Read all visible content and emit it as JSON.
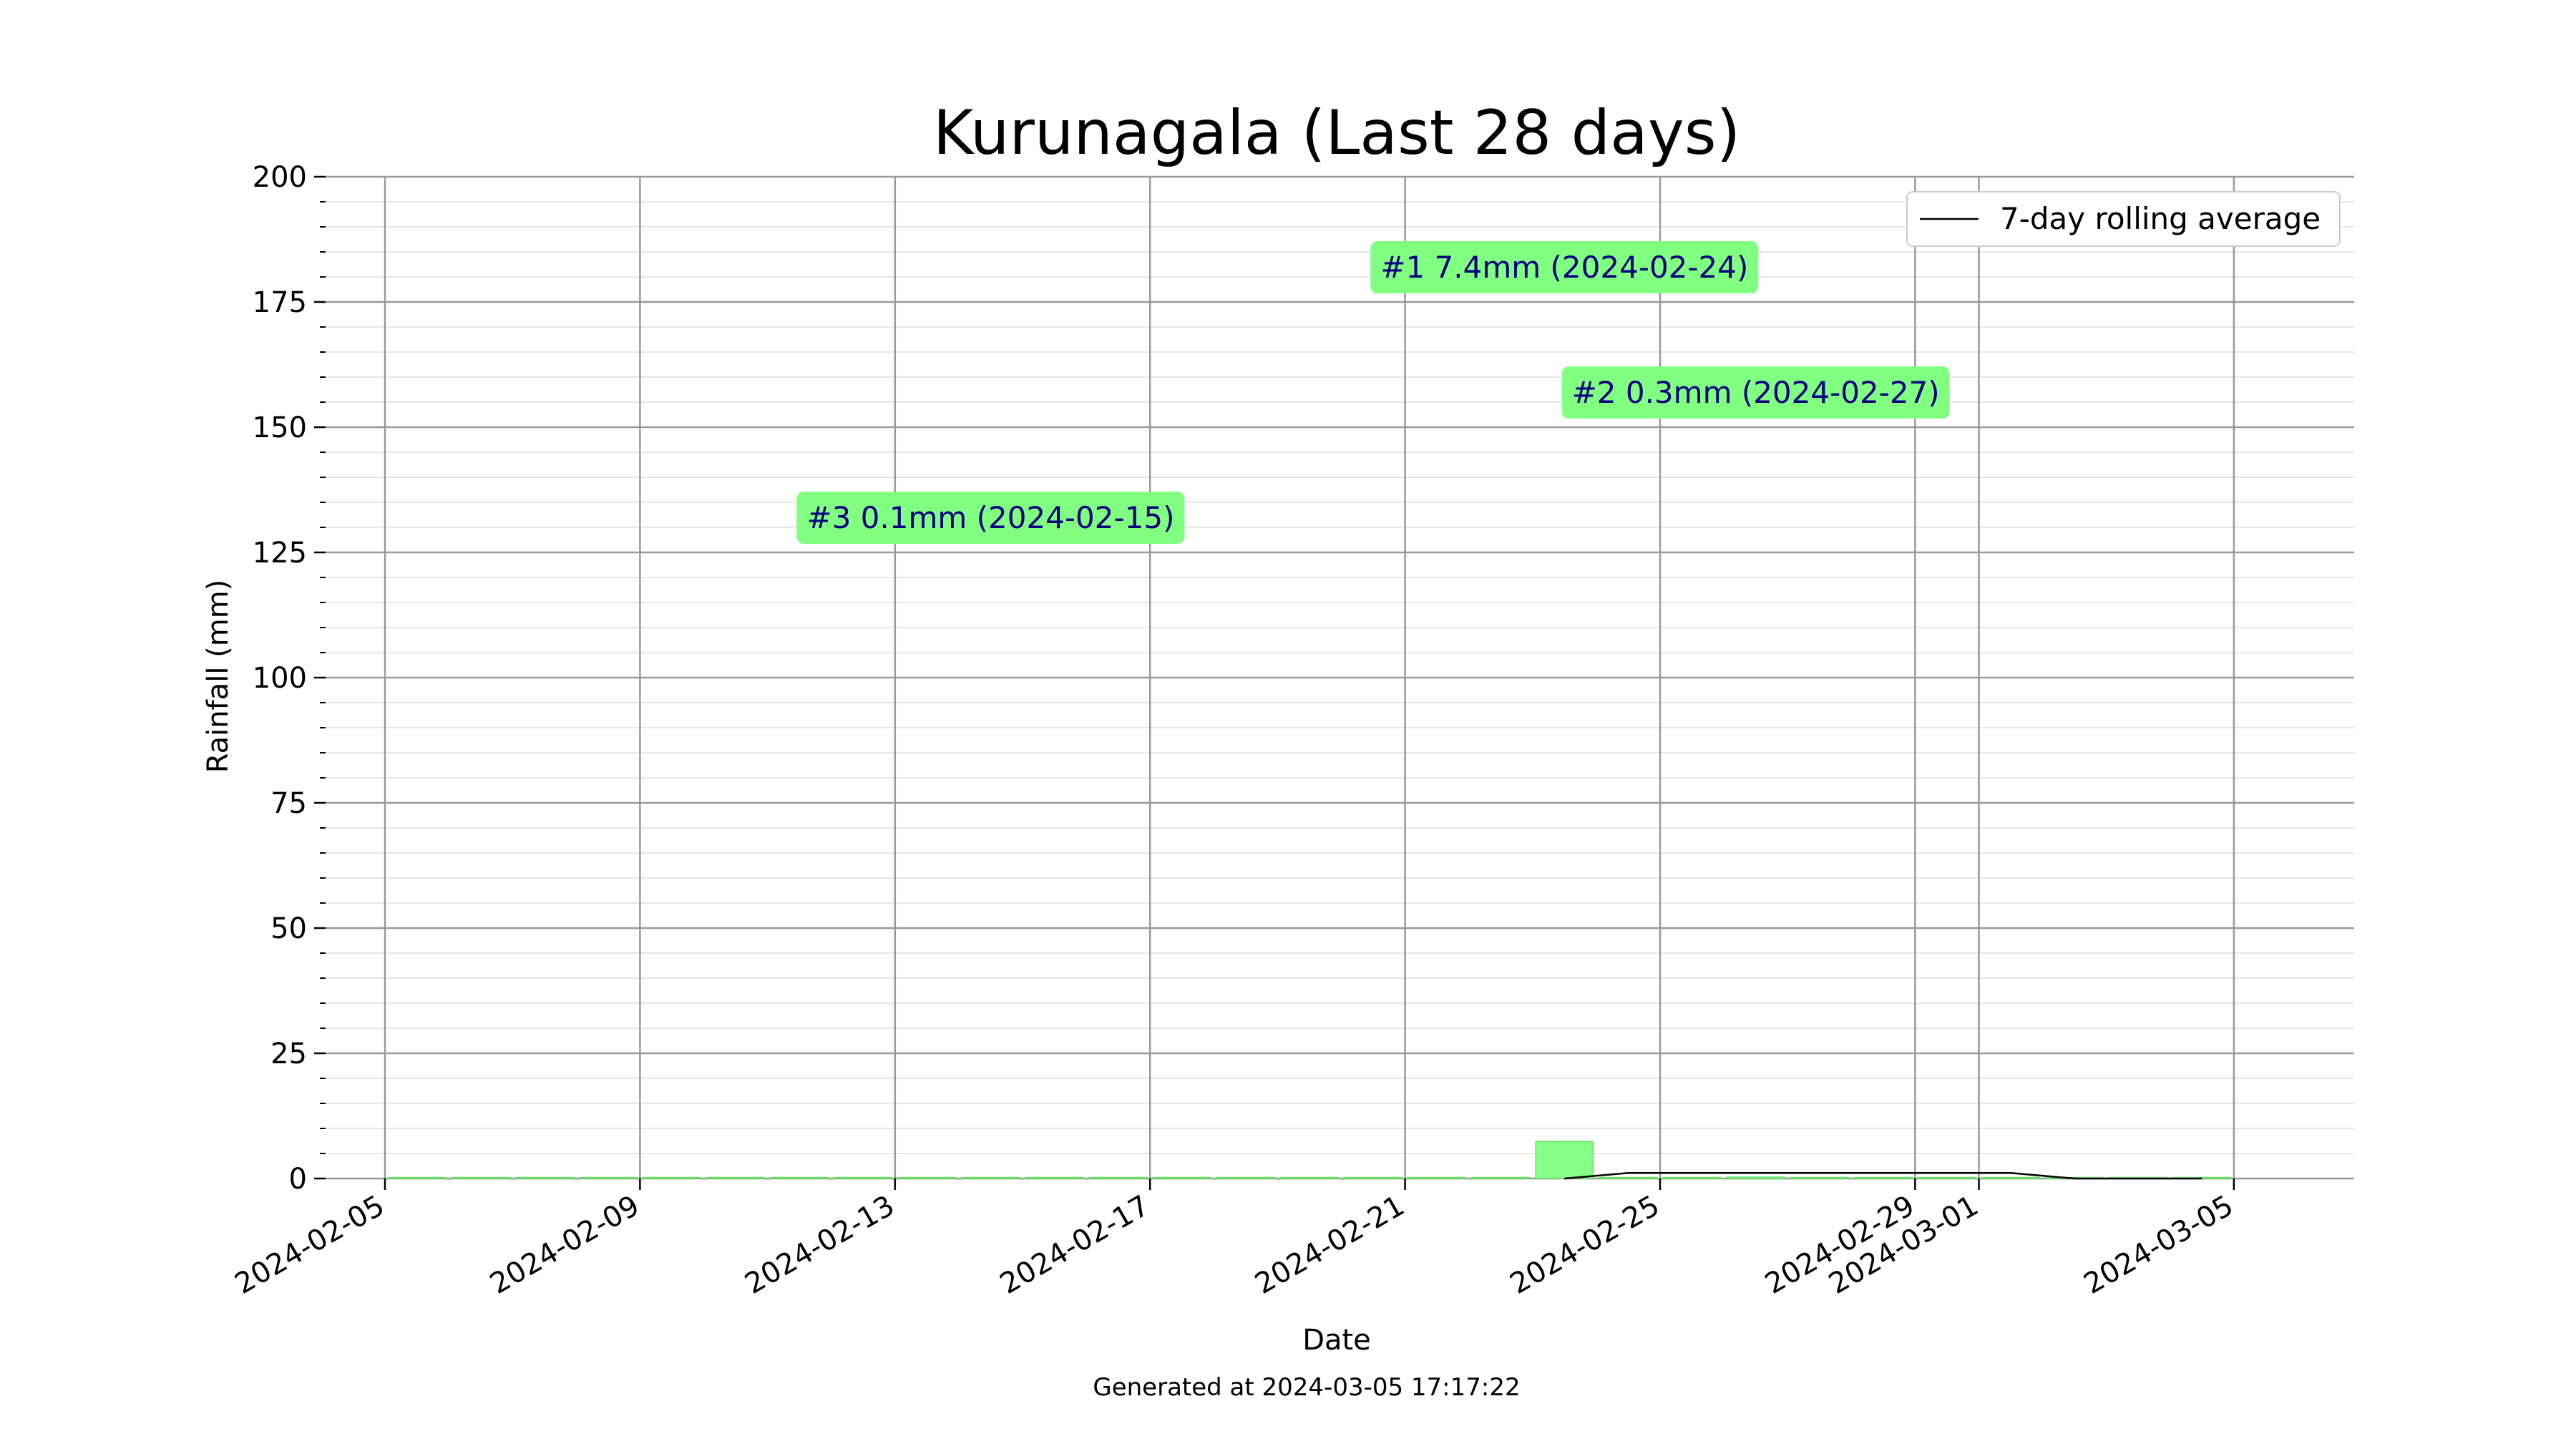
{
  "chart_data": {
    "type": "bar",
    "title": "Kurunagala (Last 28 days)",
    "xlabel": "Date",
    "ylabel": "Rainfall (mm)",
    "footer": "Generated at 2024-03-05 17:17:22",
    "ylim": [
      0,
      200
    ],
    "y_major_ticks": [
      0,
      25,
      50,
      75,
      100,
      125,
      150,
      175,
      200
    ],
    "y_minor_step": 5,
    "grid": true,
    "x_ticks": [
      "2024-02-05",
      "2024-02-09",
      "2024-02-13",
      "2024-02-17",
      "2024-02-21",
      "2024-02-25",
      "2024-02-29",
      "2024-03-01",
      "2024-03-05"
    ],
    "bar_color": "#80ff80",
    "bars": [
      {
        "date": "2024-02-06",
        "value": 0
      },
      {
        "date": "2024-02-07",
        "value": 0
      },
      {
        "date": "2024-02-08",
        "value": 0
      },
      {
        "date": "2024-02-09",
        "value": 0
      },
      {
        "date": "2024-02-10",
        "value": 0
      },
      {
        "date": "2024-02-11",
        "value": 0
      },
      {
        "date": "2024-02-12",
        "value": 0
      },
      {
        "date": "2024-02-13",
        "value": 0
      },
      {
        "date": "2024-02-14",
        "value": 0
      },
      {
        "date": "2024-02-15",
        "value": 0.1
      },
      {
        "date": "2024-02-16",
        "value": 0
      },
      {
        "date": "2024-02-17",
        "value": 0
      },
      {
        "date": "2024-02-18",
        "value": 0
      },
      {
        "date": "2024-02-19",
        "value": 0
      },
      {
        "date": "2024-02-20",
        "value": 0
      },
      {
        "date": "2024-02-21",
        "value": 0
      },
      {
        "date": "2024-02-22",
        "value": 0
      },
      {
        "date": "2024-02-23",
        "value": 0
      },
      {
        "date": "2024-02-24",
        "value": 7.4
      },
      {
        "date": "2024-02-25",
        "value": 0
      },
      {
        "date": "2024-02-26",
        "value": 0
      },
      {
        "date": "2024-02-27",
        "value": 0.3
      },
      {
        "date": "2024-02-28",
        "value": 0
      },
      {
        "date": "2024-02-29",
        "value": 0
      },
      {
        "date": "2024-03-01",
        "value": 0
      },
      {
        "date": "2024-03-02",
        "value": 0
      },
      {
        "date": "2024-03-03",
        "value": 0
      },
      {
        "date": "2024-03-04",
        "value": 0
      },
      {
        "date": "2024-03-05",
        "value": 0
      }
    ],
    "series": [
      {
        "name": "7-day rolling average",
        "color": "#000000",
        "points": [
          {
            "date": "2024-02-24",
            "value": 0
          },
          {
            "date": "2024-02-25",
            "value": 1.1
          },
          {
            "date": "2024-02-26",
            "value": 1.1
          },
          {
            "date": "2024-02-27",
            "value": 1.1
          },
          {
            "date": "2024-02-28",
            "value": 1.1
          },
          {
            "date": "2024-02-29",
            "value": 1.1
          },
          {
            "date": "2024-03-01",
            "value": 1.1
          },
          {
            "date": "2024-03-02",
            "value": 1.1
          },
          {
            "date": "2024-03-03",
            "value": 0
          },
          {
            "date": "2024-03-04",
            "value": 0
          },
          {
            "date": "2024-03-05",
            "value": 0
          }
        ]
      }
    ],
    "legend": {
      "position": "top-right",
      "entries": [
        "7-day rolling average"
      ]
    },
    "annotations": [
      {
        "text": "#1 7.4mm (2024-02-24)",
        "date": "2024-02-24",
        "value": 182
      },
      {
        "text": "#2 0.3mm (2024-02-27)",
        "date": "2024-02-27",
        "value": 157
      },
      {
        "text": "#3 0.1mm (2024-02-15)",
        "date": "2024-02-15",
        "value": 132
      }
    ],
    "annotation_color": "#80ff80",
    "annotation_text_color": "#000080"
  }
}
